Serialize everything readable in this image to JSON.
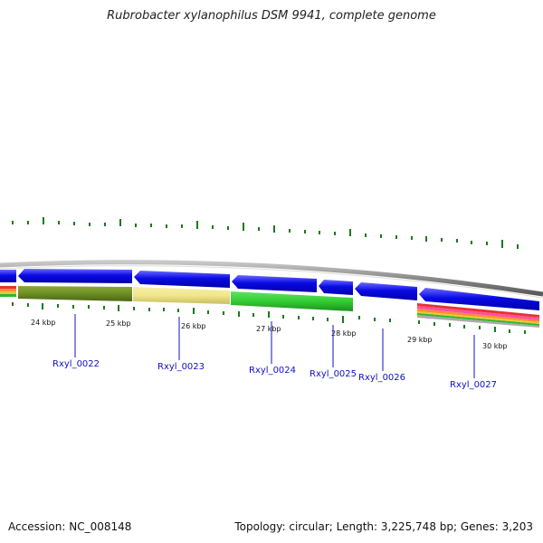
{
  "title": "Rubrobacter xylanophilus DSM 9941, complete genome",
  "footer": {
    "accession": "Accession: NC_008148",
    "summary": "Topology: circular; Length: 3,225,748 bp; Genes: 3,203"
  },
  "scale_labels": [
    "24 kbp",
    "25 kbp",
    "26 kbp",
    "27 kbp",
    "28 kbp",
    "29 kbp",
    "30 kbp"
  ],
  "gene_labels": [
    "Rxyl_0022",
    "Rxyl_0023",
    "Rxyl_0024",
    "Rxyl_0025",
    "Rxyl_0026",
    "Rxyl_0027"
  ],
  "colors": {
    "backbone": "#888888",
    "gene_blue": "#0a0ae6",
    "olive": "#6b8e23",
    "pale_yellow": "#f0e68c",
    "green": "#32cd32",
    "tick_green": "#1a7a1a",
    "label_blue": "#1010c8"
  }
}
